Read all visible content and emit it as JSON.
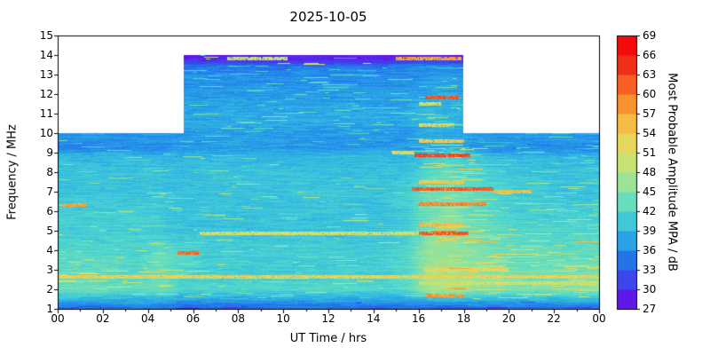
{
  "chart_data": {
    "type": "heatmap",
    "title": "2025-10-05",
    "xlabel": "UT Time / hrs",
    "ylabel": "Frequency / MHz",
    "xlim": [
      0,
      24
    ],
    "ylim": [
      1,
      15
    ],
    "grid_on": false,
    "xtick_values": [
      0,
      2,
      4,
      6,
      8,
      10,
      12,
      14,
      16,
      18,
      20,
      22,
      24
    ],
    "xtick_labels": [
      "00",
      "02",
      "04",
      "06",
      "08",
      "10",
      "12",
      "14",
      "16",
      "18",
      "20",
      "22",
      "00"
    ],
    "ytick_values": [
      1,
      2,
      3,
      4,
      5,
      6,
      7,
      8,
      9,
      10,
      11,
      12,
      13,
      14,
      15
    ],
    "colorbar": {
      "label": "Most Probable Amplitude MPA / dB",
      "min": 27,
      "max": 69,
      "ticks": [
        27,
        30,
        33,
        36,
        39,
        42,
        45,
        48,
        51,
        54,
        57,
        60,
        63,
        66,
        69
      ],
      "position": "right"
    },
    "colormap": [
      {
        "v": 27,
        "c": [
          110,
          0,
          220
        ]
      },
      {
        "v": 30,
        "c": [
          80,
          50,
          240
        ]
      },
      {
        "v": 33,
        "c": [
          40,
          90,
          230
        ]
      },
      {
        "v": 36,
        "c": [
          35,
          140,
          235
        ]
      },
      {
        "v": 39,
        "c": [
          50,
          185,
          225
        ]
      },
      {
        "v": 42,
        "c": [
          80,
          215,
          205
        ]
      },
      {
        "v": 45,
        "c": [
          130,
          225,
          170
        ]
      },
      {
        "v": 48,
        "c": [
          180,
          230,
          130
        ]
      },
      {
        "v": 51,
        "c": [
          220,
          225,
          100
        ]
      },
      {
        "v": 54,
        "c": [
          240,
          205,
          80
        ]
      },
      {
        "v": 57,
        "c": [
          250,
          170,
          55
        ]
      },
      {
        "v": 60,
        "c": [
          250,
          120,
          40
        ]
      },
      {
        "v": 63,
        "c": [
          245,
          70,
          30
        ]
      },
      {
        "v": 66,
        "c": [
          235,
          25,
          20
        ]
      },
      {
        "v": 69,
        "c": [
          255,
          0,
          0
        ]
      }
    ],
    "coverage": [
      {
        "t0": 0,
        "t1": 5.6,
        "fmax": 10
      },
      {
        "t0": 5.6,
        "t1": 18.0,
        "fmax": 14
      },
      {
        "t0": 18.0,
        "t1": 24,
        "fmax": 10
      }
    ],
    "grid": {
      "times": [
        0.5,
        1.5,
        2.5,
        3.5,
        4.5,
        5.5,
        6.5,
        7.5,
        8.5,
        9.5,
        10.5,
        11.5,
        12.5,
        13.5,
        14.5,
        15.5,
        16.5,
        17.5,
        18.5,
        19.5,
        20.5,
        21.5,
        22.5,
        23.5
      ],
      "freqs": [
        1.0,
        1.4,
        2.0,
        3.0,
        4.0,
        5.0,
        6.0,
        7.0,
        8.0,
        8.8,
        9.2,
        10.0,
        10.5,
        11.0,
        12.0,
        13.0,
        13.4,
        13.7,
        14.0
      ],
      "values": [
        [
          34,
          34,
          34,
          34,
          34,
          33,
          33,
          33,
          34,
          34,
          34,
          34,
          34,
          34,
          34,
          34,
          33,
          33,
          34,
          34,
          34,
          34,
          34,
          34
        ],
        [
          38,
          38,
          38,
          38,
          38,
          37,
          37,
          37,
          37,
          37,
          37,
          37,
          37,
          37,
          37,
          37,
          38,
          38,
          38,
          38,
          38,
          38,
          38,
          38
        ],
        [
          44,
          44,
          43,
          43,
          44,
          42,
          42,
          42,
          42,
          42,
          42,
          42,
          42,
          42,
          42,
          43,
          47,
          48,
          46,
          46,
          45,
          45,
          45,
          46
        ],
        [
          43,
          43,
          43,
          42,
          44,
          42,
          41,
          41,
          41,
          41,
          41,
          41,
          41,
          41,
          41,
          42,
          47,
          47,
          46,
          45,
          44,
          44,
          44,
          44
        ],
        [
          42,
          42,
          42,
          42,
          43,
          42,
          41,
          41,
          41,
          41,
          41,
          41,
          41,
          41,
          41,
          42,
          46,
          46,
          45,
          44,
          43,
          43,
          43,
          43
        ],
        [
          41,
          41,
          41,
          41,
          41,
          40,
          40,
          40,
          40,
          40,
          40,
          40,
          40,
          40,
          40,
          41,
          45,
          46,
          44,
          43,
          42,
          42,
          42,
          42
        ],
        [
          41,
          41,
          41,
          41,
          41,
          40,
          40,
          40,
          40,
          40,
          40,
          40,
          40,
          40,
          40,
          41,
          44,
          45,
          43,
          42,
          41,
          41,
          41,
          41
        ],
        [
          40,
          40,
          40,
          40,
          40,
          40,
          40,
          40,
          40,
          40,
          40,
          40,
          40,
          40,
          40,
          41,
          44,
          45,
          43,
          42,
          41,
          41,
          40,
          40
        ],
        [
          40,
          40,
          40,
          40,
          40,
          39,
          40,
          40,
          40,
          40,
          40,
          40,
          40,
          40,
          40,
          40,
          42,
          43,
          42,
          41,
          40,
          40,
          40,
          40
        ],
        [
          39,
          39,
          39,
          39,
          39,
          39,
          39,
          39,
          39,
          39,
          39,
          39,
          39,
          39,
          39,
          39,
          41,
          42,
          40,
          39,
          39,
          39,
          39,
          39
        ],
        [
          36,
          36,
          36,
          36,
          36,
          37,
          37,
          37,
          37,
          37,
          37,
          37,
          37,
          37,
          37,
          37,
          38,
          39,
          37,
          36,
          36,
          36,
          36,
          36
        ],
        [
          37,
          37,
          37,
          37,
          37,
          37,
          37,
          37,
          37,
          37,
          37,
          37,
          37,
          37,
          37,
          37,
          38,
          38,
          37,
          37,
          37,
          37,
          37,
          37
        ],
        [
          38,
          38,
          38,
          38,
          38,
          38,
          38,
          38,
          38,
          38,
          38,
          38,
          38,
          38,
          38,
          38,
          39,
          39,
          38,
          38,
          38,
          38,
          38,
          38
        ],
        [
          38,
          38,
          38,
          38,
          38,
          38,
          38,
          38,
          38,
          38,
          38,
          38,
          38,
          38,
          38,
          38,
          39,
          39,
          38,
          38,
          38,
          38,
          38,
          38
        ],
        [
          37,
          37,
          37,
          37,
          37,
          37,
          37,
          37,
          37,
          37,
          37,
          37,
          37,
          37,
          37,
          37,
          38,
          38,
          37,
          37,
          37,
          37,
          37,
          37
        ],
        [
          36,
          36,
          36,
          36,
          36,
          36,
          36,
          36,
          36,
          36,
          36,
          36,
          36,
          36,
          36,
          36,
          37,
          37,
          36,
          36,
          36,
          36,
          36,
          36
        ],
        [
          35,
          35,
          35,
          35,
          35,
          35,
          35,
          35,
          35,
          35,
          35,
          35,
          35,
          35,
          35,
          36,
          37,
          36,
          35,
          35,
          35,
          35,
          35,
          35
        ],
        [
          30,
          30,
          30,
          30,
          30,
          30,
          30,
          30,
          30,
          30,
          30,
          30,
          30,
          30,
          30,
          31,
          32,
          31,
          30,
          30,
          30,
          30,
          30,
          30
        ],
        [
          28,
          28,
          28,
          28,
          28,
          28,
          28,
          28,
          28,
          28,
          28,
          28,
          28,
          28,
          28,
          28,
          29,
          28,
          28,
          28,
          28,
          28,
          28,
          28
        ]
      ]
    },
    "streaks": [
      {
        "f": 2.65,
        "t0": 0,
        "t1": 24,
        "v": 53
      },
      {
        "f": 2.3,
        "t0": 16,
        "t1": 24,
        "v": 50
      },
      {
        "f": 3.0,
        "t0": 16.2,
        "t1": 20,
        "v": 52
      },
      {
        "f": 3.85,
        "t0": 5.3,
        "t1": 6.3,
        "v": 61
      },
      {
        "f": 4.85,
        "t0": 6.3,
        "t1": 16,
        "v": 51
      },
      {
        "f": 4.85,
        "t0": 16,
        "t1": 18.2,
        "v": 62
      },
      {
        "f": 5.3,
        "t0": 16,
        "t1": 18,
        "v": 55
      },
      {
        "f": 6.3,
        "t0": 0.2,
        "t1": 1.3,
        "v": 57
      },
      {
        "f": 6.35,
        "t0": 16,
        "t1": 19,
        "v": 59
      },
      {
        "f": 7.15,
        "t0": 15.7,
        "t1": 19.3,
        "v": 62
      },
      {
        "f": 7.0,
        "t0": 19.3,
        "t1": 21,
        "v": 55
      },
      {
        "f": 7.5,
        "t0": 16,
        "t1": 18,
        "v": 54
      },
      {
        "f": 8.85,
        "t0": 15.8,
        "t1": 18.3,
        "v": 63
      },
      {
        "f": 9.0,
        "t0": 14.8,
        "t1": 15.8,
        "v": 52
      },
      {
        "f": 9.6,
        "t0": 16,
        "t1": 18,
        "v": 54
      },
      {
        "f": 10.4,
        "t0": 16,
        "t1": 17.6,
        "v": 52
      },
      {
        "f": 11.8,
        "t0": 16.3,
        "t1": 17.8,
        "v": 62
      },
      {
        "f": 11.5,
        "t0": 16,
        "t1": 17,
        "v": 50
      },
      {
        "f": 13.8,
        "t0": 15,
        "t1": 17.9,
        "v": 57
      },
      {
        "f": 13.8,
        "t0": 7.5,
        "t1": 10.2,
        "v": 49
      },
      {
        "f": 1.7,
        "t0": 16.3,
        "t1": 18,
        "v": 58
      }
    ],
    "speckle_zones": [
      {
        "t0": 16,
        "t1": 18.5,
        "f0": 1.5,
        "f1": 9.5,
        "p": 0.12,
        "boost": 9
      },
      {
        "t0": 18.5,
        "t1": 24,
        "f0": 1.5,
        "f1": 5,
        "p": 0.1,
        "boost": 7
      },
      {
        "t0": 0,
        "t1": 5.6,
        "f0": 2,
        "f1": 4.5,
        "p": 0.05,
        "boost": 6
      },
      {
        "t0": 5.6,
        "t1": 18,
        "f0": 10,
        "f1": 13.5,
        "p": 0.05,
        "boost": 6
      },
      {
        "t0": 6,
        "t1": 18,
        "f0": 13.5,
        "f1": 14,
        "p": 0.05,
        "boost": 16
      },
      {
        "t0": 0,
        "t1": 24,
        "f0": 1.5,
        "f1": 10,
        "p": 0.03,
        "boost": 6
      },
      {
        "t0": 18.5,
        "t1": 24,
        "f0": 5,
        "f1": 10,
        "p": 0.05,
        "boost": 5
      },
      {
        "t0": 0,
        "t1": 24,
        "f0": 1,
        "f1": 1.35,
        "p": 0.06,
        "boost": -5
      }
    ]
  }
}
